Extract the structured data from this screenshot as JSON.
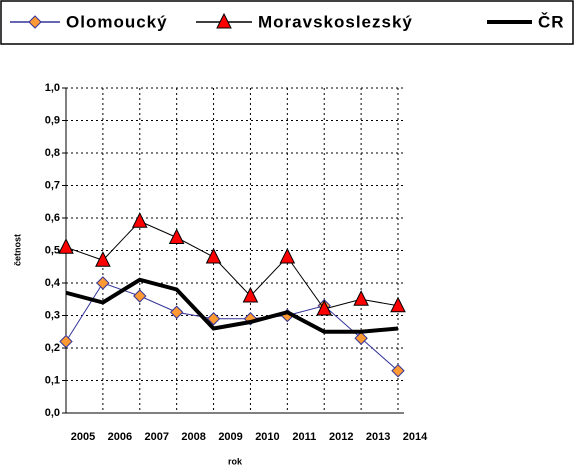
{
  "chart_data": {
    "type": "line",
    "categories": [
      "2005",
      "2006",
      "2007",
      "2008",
      "2009",
      "2010",
      "2011",
      "2012",
      "2013",
      "2014"
    ],
    "series": [
      {
        "name": "Olomoucký",
        "color": "#333399",
        "marker_color": "#ff9933",
        "marker": "diamond",
        "values": [
          0.22,
          0.4,
          0.36,
          0.31,
          0.29,
          0.29,
          0.3,
          0.33,
          0.23,
          0.13
        ]
      },
      {
        "name": "Moravskoslezský",
        "color": "#000000",
        "marker_color": "#ff0000",
        "marker": "triangle",
        "values": [
          0.51,
          0.47,
          0.59,
          0.54,
          0.48,
          0.36,
          0.48,
          0.32,
          0.35,
          0.33
        ]
      },
      {
        "name": "ČR",
        "color": "#000000",
        "marker": "none",
        "values": [
          0.37,
          0.34,
          0.41,
          0.38,
          0.26,
          0.28,
          0.31,
          0.25,
          0.25,
          0.26
        ]
      }
    ],
    "xlabel": "rok",
    "ylabel": "četnost",
    "ylim": [
      0,
      1
    ],
    "yticks": [
      {
        "value": 0,
        "label": "0,0"
      },
      {
        "value": 0.1,
        "label": "0,1"
      },
      {
        "value": 0.2,
        "label": "0,2"
      },
      {
        "value": 0.3,
        "label": "0,3"
      },
      {
        "value": 0.4,
        "label": "0,4"
      },
      {
        "value": 0.5,
        "label": "0,5"
      },
      {
        "value": 0.6,
        "label": "0,6"
      },
      {
        "value": 0.7,
        "label": "0,7"
      },
      {
        "value": 0.8,
        "label": "0,8"
      },
      {
        "value": 0.9,
        "label": "0,9"
      },
      {
        "value": 1,
        "label": "1,0"
      }
    ],
    "grid": true,
    "legend": "top"
  }
}
